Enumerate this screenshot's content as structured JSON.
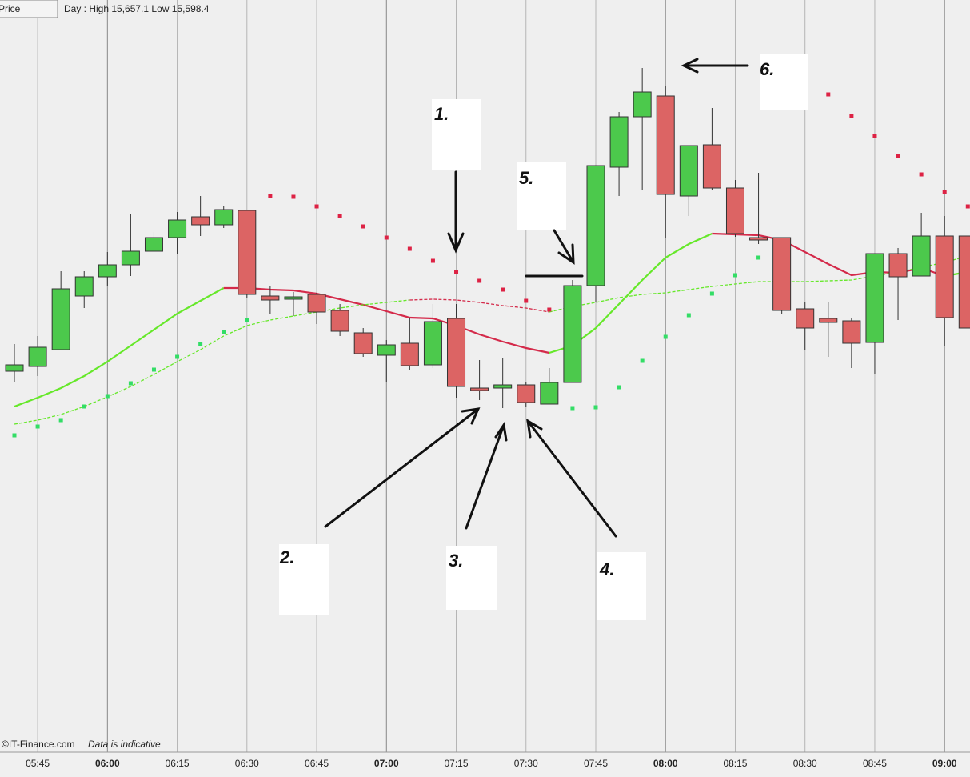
{
  "header": {
    "button": "Price",
    "day_range": "Day : High 15,657.1 Low 15,598.4"
  },
  "footer": {
    "source": "©IT-Finance.com",
    "note": "Data is indicative"
  },
  "annotations": [
    "1.",
    "2.",
    "3.",
    "4.",
    "5.",
    "6."
  ],
  "chart_data": {
    "type": "candlestick",
    "categories": [
      null,
      "05:45",
      null,
      null,
      "06:00",
      null,
      null,
      "06:15",
      null,
      null,
      "06:30",
      null,
      null,
      "06:45",
      null,
      null,
      "07:00",
      null,
      null,
      "07:15",
      null,
      null,
      "07:30",
      null,
      null,
      "07:45",
      null,
      null,
      "08:00",
      null,
      null,
      "08:15",
      null,
      null,
      "08:30",
      null,
      null,
      "08:45",
      null,
      null,
      "09:00",
      null
    ],
    "open": [
      15619.2,
      15619.8,
      15621.9,
      15628.6,
      15631.0,
      15632.5,
      15634.2,
      15635.9,
      15638.5,
      15637.5,
      15639.3,
      15628.6,
      15628.2,
      15628.8,
      15626.8,
      15624.0,
      15621.2,
      15622.7,
      15620.0,
      15625.8,
      15617.1,
      15617.1,
      15617.5,
      15615.1,
      15617.8,
      15629.9,
      15644.7,
      15651.0,
      15653.6,
      15641.1,
      15647.5,
      15642.1,
      15635.9,
      15635.9,
      15627.0,
      15625.8,
      15625.5,
      15622.8,
      15633.9,
      15631.1,
      15636.1,
      15636.1
    ],
    "high": [
      15622.6,
      15623.6,
      15631.7,
      15631.7,
      15634.1,
      15638.8,
      15636.6,
      15639.1,
      15641.1,
      15639.8,
      15639.3,
      15629.8,
      15629.1,
      15629.0,
      15627.6,
      15624.6,
      15623.1,
      15625.8,
      15627.6,
      15627.6,
      15620.6,
      15620.8,
      15617.8,
      15619.6,
      15630.6,
      15644.9,
      15651.6,
      15657.1,
      15654.9,
      15647.4,
      15652.1,
      15643.1,
      15644.0,
      15635.9,
      15627.8,
      15627.9,
      15625.8,
      15633.9,
      15634.6,
      15639.0,
      15638.6,
      15636.1
    ],
    "low": [
      15617.8,
      15618.6,
      15621.9,
      15627.1,
      15629.8,
      15631.1,
      15634.2,
      15633.8,
      15636.1,
      15637.1,
      15628.4,
      15626.4,
      15626.1,
      15625.1,
      15623.6,
      15621.0,
      15617.8,
      15619.4,
      15619.6,
      15615.9,
      15615.6,
      15614.6,
      15614.8,
      15615.1,
      15617.8,
      15627.8,
      15641.1,
      15641.8,
      15635.9,
      15638.6,
      15641.8,
      15636.0,
      15635.1,
      15626.4,
      15621.8,
      15621.0,
      15619.6,
      15618.8,
      15625.6,
      15631.1,
      15622.3,
      15624.6
    ],
    "close": [
      15620.0,
      15622.2,
      15629.5,
      15631.0,
      15632.5,
      15634.2,
      15635.9,
      15638.1,
      15637.5,
      15639.4,
      15628.8,
      15628.1,
      15628.5,
      15626.6,
      15624.2,
      15621.4,
      15622.5,
      15619.9,
      15625.4,
      15617.3,
      15616.8,
      15617.5,
      15615.3,
      15617.8,
      15629.9,
      15644.9,
      15651.0,
      15654.1,
      15641.3,
      15647.4,
      15642.1,
      15636.4,
      15635.6,
      15626.8,
      15624.6,
      15625.3,
      15622.7,
      15633.9,
      15631.0,
      15636.1,
      15625.9,
      15624.6
    ],
    "up_color": "#4cc94c",
    "down_color": "#dc6464",
    "ylim": [
      15571.6,
      15664.6
    ],
    "grid": true,
    "series": [
      {
        "style": "line",
        "color": "#66e82a",
        "values": [
          15614.8,
          15615.9,
          15617.1,
          15618.6,
          15620.4,
          15622.4,
          15624.4,
          15626.4,
          15628.0,
          15629.6,
          null,
          null,
          null,
          null,
          null,
          null,
          null,
          null,
          null,
          null,
          null,
          null,
          null,
          15621.5,
          15622.4,
          15624.6,
          15627.6,
          15630.6,
          15633.4,
          15635.1,
          15636.4,
          null,
          null,
          null,
          null,
          null,
          null,
          null,
          null,
          null,
          15631.1,
          15631.6
        ]
      },
      {
        "style": "line",
        "color": "#d42a4a",
        "values": [
          null,
          null,
          null,
          null,
          null,
          null,
          null,
          null,
          null,
          15629.6,
          15629.6,
          15629.4,
          15629.3,
          15628.9,
          15628.2,
          15627.5,
          15626.7,
          15625.9,
          15625.8,
          15624.9,
          15623.8,
          15622.9,
          15622.1,
          15621.5,
          null,
          null,
          null,
          null,
          null,
          null,
          15636.4,
          15636.3,
          15636.2,
          15635.6,
          15634.1,
          15632.6,
          15631.2,
          15631.6,
          15631.5,
          15632.1,
          15631.1,
          null
        ]
      },
      {
        "style": "dashed",
        "color": "#66e82a",
        "values": [
          15612.6,
          15613.1,
          15613.8,
          15614.8,
          15616.0,
          15617.3,
          15618.8,
          15620.4,
          15621.9,
          15623.6,
          15624.9,
          15625.6,
          15626.1,
          15626.6,
          15627.1,
          15627.5,
          15627.8,
          15628.1,
          null,
          null,
          null,
          null,
          null,
          15626.6,
          15627.3,
          15627.8,
          15628.4,
          15628.8,
          15629.0,
          15629.4,
          15629.8,
          15630.1,
          15630.4,
          15630.4,
          15630.4,
          15630.5,
          15630.6,
          15631.1,
          15631.6,
          15632.2,
          15632.8,
          15633.6
        ]
      },
      {
        "style": "dashed",
        "color": "#d42a4a",
        "values": [
          null,
          null,
          null,
          null,
          null,
          null,
          null,
          null,
          null,
          null,
          null,
          null,
          null,
          null,
          null,
          null,
          null,
          15628.1,
          15628.2,
          15628.1,
          15627.8,
          15627.4,
          15627.1,
          15626.6,
          null,
          null,
          null,
          null,
          null,
          null,
          null,
          null,
          null,
          null,
          null,
          null,
          null,
          null,
          null,
          null,
          null,
          null
        ]
      },
      {
        "style": "dots",
        "color": "#33dd66",
        "values": [
          15611.2,
          15612.3,
          15613.1,
          15614.8,
          15616.1,
          15617.7,
          15619.4,
          15621.0,
          15622.6,
          15624.1,
          15625.6,
          null,
          null,
          null,
          null,
          null,
          null,
          null,
          null,
          null,
          null,
          null,
          null,
          null,
          15614.6,
          15614.7,
          15617.2,
          15620.5,
          15623.5,
          15626.2,
          15628.9,
          15631.2,
          15633.4,
          null,
          null,
          null,
          null,
          null,
          null,
          null,
          null,
          null
        ]
      },
      {
        "style": "dots",
        "color": "#dd2244",
        "values": [
          null,
          null,
          null,
          null,
          null,
          null,
          null,
          null,
          null,
          null,
          null,
          15641.1,
          15641.0,
          15639.8,
          15638.6,
          15637.3,
          15635.9,
          15634.5,
          15633.0,
          15631.6,
          15630.5,
          15629.4,
          15628.0,
          15626.9,
          null,
          null,
          null,
          null,
          null,
          null,
          null,
          null,
          null,
          null,
          null,
          15653.8,
          15651.1,
          15648.6,
          15646.1,
          15643.8,
          15641.6,
          15639.8
        ]
      }
    ]
  }
}
